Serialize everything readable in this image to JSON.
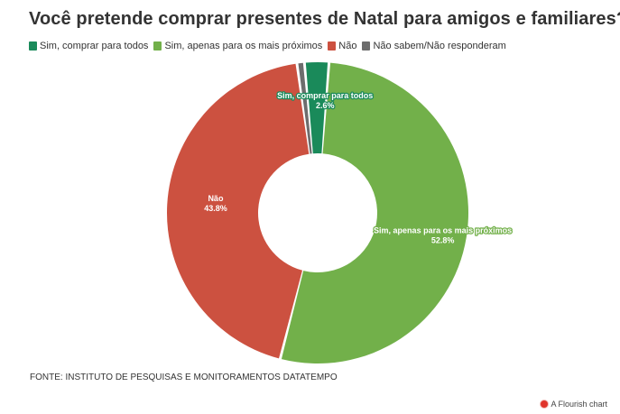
{
  "chart_data": {
    "type": "pie",
    "title": "Você pretende comprar presentes de Natal para amigos e familiares?",
    "categories": [
      "Sim, comprar para todos",
      "Sim, apenas para os mais próximos",
      "Não",
      "Não sabem/Não responderam"
    ],
    "values": [
      2.6,
      52.8,
      43.8,
      0.8
    ],
    "value_labels": [
      "2.6%",
      "52.8%",
      "43.8%",
      ""
    ],
    "colors": [
      "#1a8a5a",
      "#72b04a",
      "#cc5140",
      "#6d6d6d"
    ],
    "legend_position": "top-left",
    "style": "donut"
  },
  "source": "FONTE: INSTITUTO DE PESQUISAS E MONITORAMENTOS DATATEMPO",
  "credit": "A Flourish chart"
}
